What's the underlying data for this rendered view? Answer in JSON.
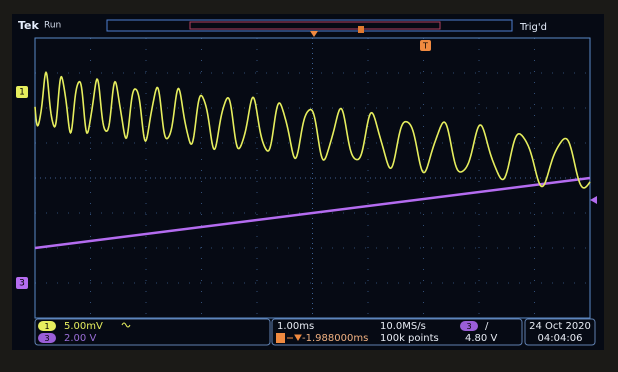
{
  "header": {
    "brand": "Tek",
    "state": "Run",
    "trigger_status": "Trig'd"
  },
  "markers": {
    "channel1": "1",
    "channel3": "3",
    "trigger": "T"
  },
  "status_bar": {
    "ch1_badge": "1",
    "ch1_scale": "5.00mV",
    "ch3_badge": "3",
    "ch3_scale": "2.00 V",
    "timebase": "1.00ms",
    "sample_rate": "10.0MS/s",
    "trigger_position": "-1.988000ms",
    "record_length": "100k points",
    "trigger_source": "3",
    "trigger_slope": "/",
    "trigger_level": "4.80 V",
    "date": "24 Oct 2020",
    "time": "04:04:06"
  }
}
